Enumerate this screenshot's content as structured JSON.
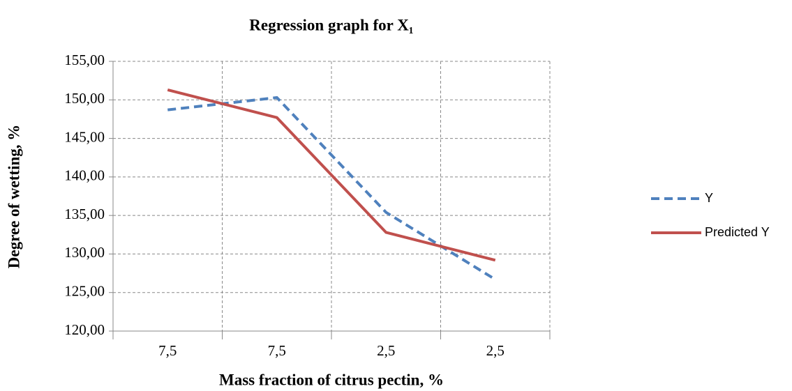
{
  "chart_data": {
    "type": "line",
    "title": "Regression graph for X₁",
    "x_label": "Mass fraction of citrus pectin, %",
    "y_label": "Degree of wetting, %",
    "categories": [
      "7,5",
      "7,5",
      "2,5",
      "2,5"
    ],
    "series": [
      {
        "name": "Y",
        "color": "#4f81bd",
        "dash": true,
        "values": [
          148.7,
          150.3,
          135.4,
          126.7
        ]
      },
      {
        "name": "Predicted Y",
        "color": "#c0504d",
        "dash": false,
        "values": [
          151.3,
          147.7,
          132.8,
          129.2
        ]
      }
    ],
    "ylim": [
      120,
      155
    ],
    "yticks": [
      {
        "value": 120,
        "label": "120,00"
      },
      {
        "value": 125,
        "label": "125,00"
      },
      {
        "value": 130,
        "label": "130,00"
      },
      {
        "value": 135,
        "label": "135,00"
      },
      {
        "value": 140,
        "label": "140,00"
      },
      {
        "value": 145,
        "label": "145,00"
      },
      {
        "value": 150,
        "label": "150,00"
      },
      {
        "value": 155,
        "label": "155,00"
      }
    ],
    "grid": true,
    "legend": "right"
  }
}
